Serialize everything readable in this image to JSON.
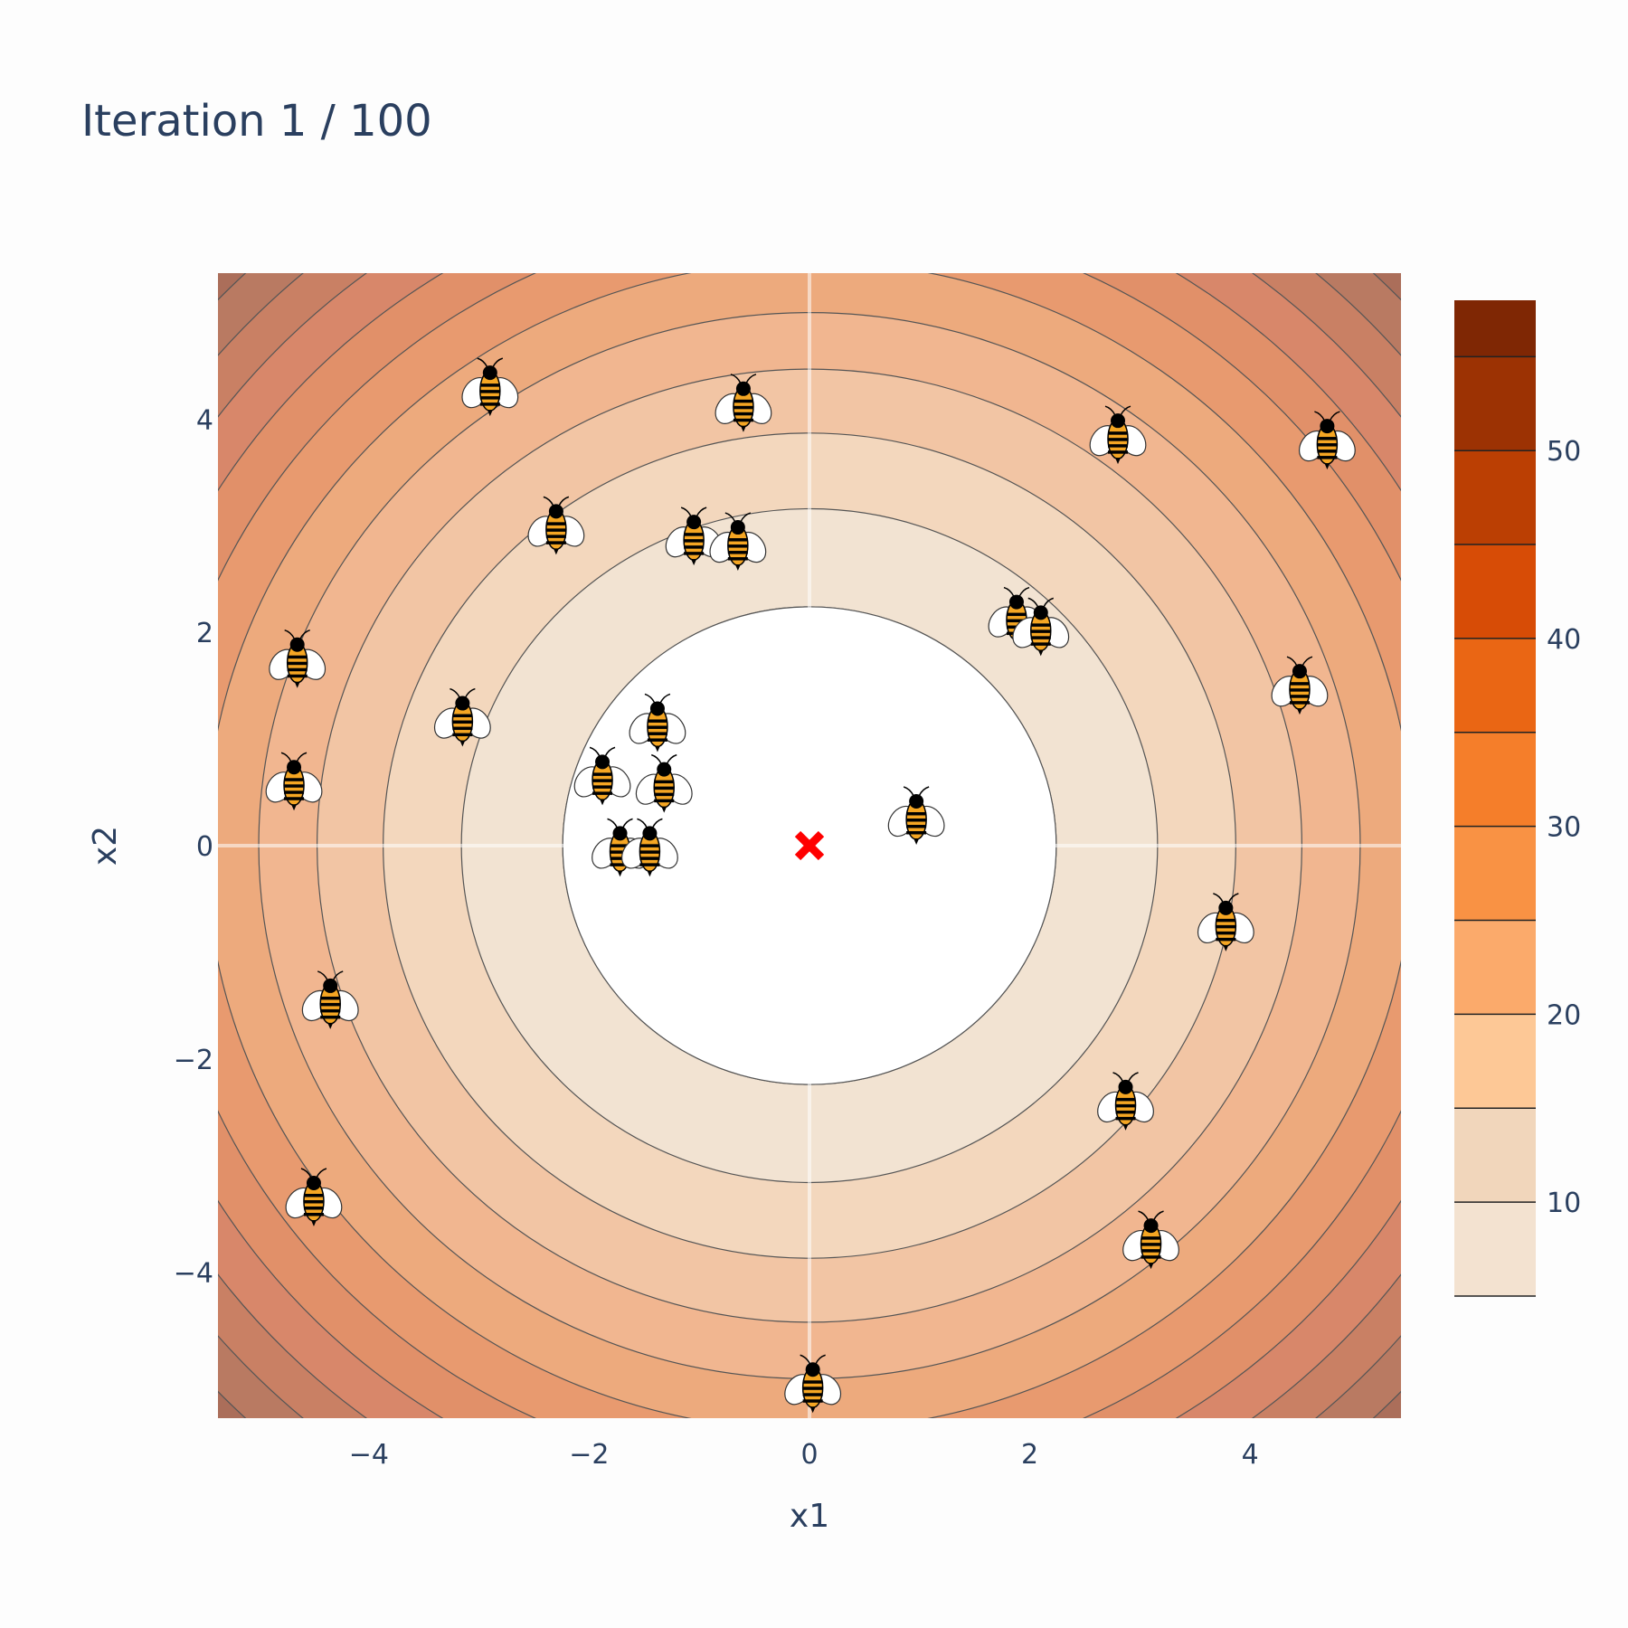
{
  "chart_data": {
    "type": "contour",
    "title": "Iteration 1 / 100",
    "xlabel": "x1",
    "ylabel": "x2",
    "xlim": [
      -5.37,
      5.37
    ],
    "ylim": [
      -5.37,
      5.37
    ],
    "xticks": [
      -4,
      -2,
      0,
      2,
      4
    ],
    "yticks": [
      -4,
      -2,
      0,
      2,
      4
    ],
    "colorbar": {
      "ticks": [
        10,
        20,
        30,
        40,
        50
      ],
      "range": [
        5,
        58
      ],
      "levels": [
        5,
        10,
        15,
        20,
        25,
        30,
        35,
        40,
        45,
        50,
        55,
        58
      ],
      "colors": [
        "#f3e2d0",
        "#f1d6bb",
        "#fdc896",
        "#fbaa6b",
        "#f99244",
        "#f57e2a",
        "#ea6614",
        "#d74c06",
        "#bb3f03",
        "#9c3203",
        "#7f2704"
      ]
    },
    "function": "x1^2 + x2^2 (sphere)",
    "best": {
      "x": 0,
      "y": 0,
      "marker": "red-x",
      "color": "#ff0000"
    },
    "bees": [
      {
        "x": -2.9,
        "y": 4.3
      },
      {
        "x": -0.6,
        "y": 4.15
      },
      {
        "x": 2.8,
        "y": 3.85
      },
      {
        "x": 4.7,
        "y": 3.8
      },
      {
        "x": -2.3,
        "y": 3.0
      },
      {
        "x": -1.05,
        "y": 2.9
      },
      {
        "x": -0.65,
        "y": 2.85
      },
      {
        "x": 1.88,
        "y": 2.15
      },
      {
        "x": 2.1,
        "y": 2.05
      },
      {
        "x": -4.65,
        "y": 1.75
      },
      {
        "x": 4.45,
        "y": 1.5
      },
      {
        "x": -3.15,
        "y": 1.2
      },
      {
        "x": -1.38,
        "y": 1.15
      },
      {
        "x": -1.88,
        "y": 0.65
      },
      {
        "x": -1.32,
        "y": 0.58
      },
      {
        "x": -4.68,
        "y": 0.6
      },
      {
        "x": 0.97,
        "y": 0.28
      },
      {
        "x": -1.72,
        "y": -0.02
      },
      {
        "x": -1.45,
        "y": -0.02
      },
      {
        "x": 3.78,
        "y": -0.72
      },
      {
        "x": -4.35,
        "y": -1.45
      },
      {
        "x": 2.87,
        "y": -2.4
      },
      {
        "x": -4.5,
        "y": -3.3
      },
      {
        "x": 3.1,
        "y": -3.7
      },
      {
        "x": 0.03,
        "y": -5.05
      }
    ],
    "colors": {
      "background": "#fdfdfd",
      "text": "#2a3f5f",
      "bee_body": "#f5a623",
      "bee_stripe": "#000000"
    }
  }
}
